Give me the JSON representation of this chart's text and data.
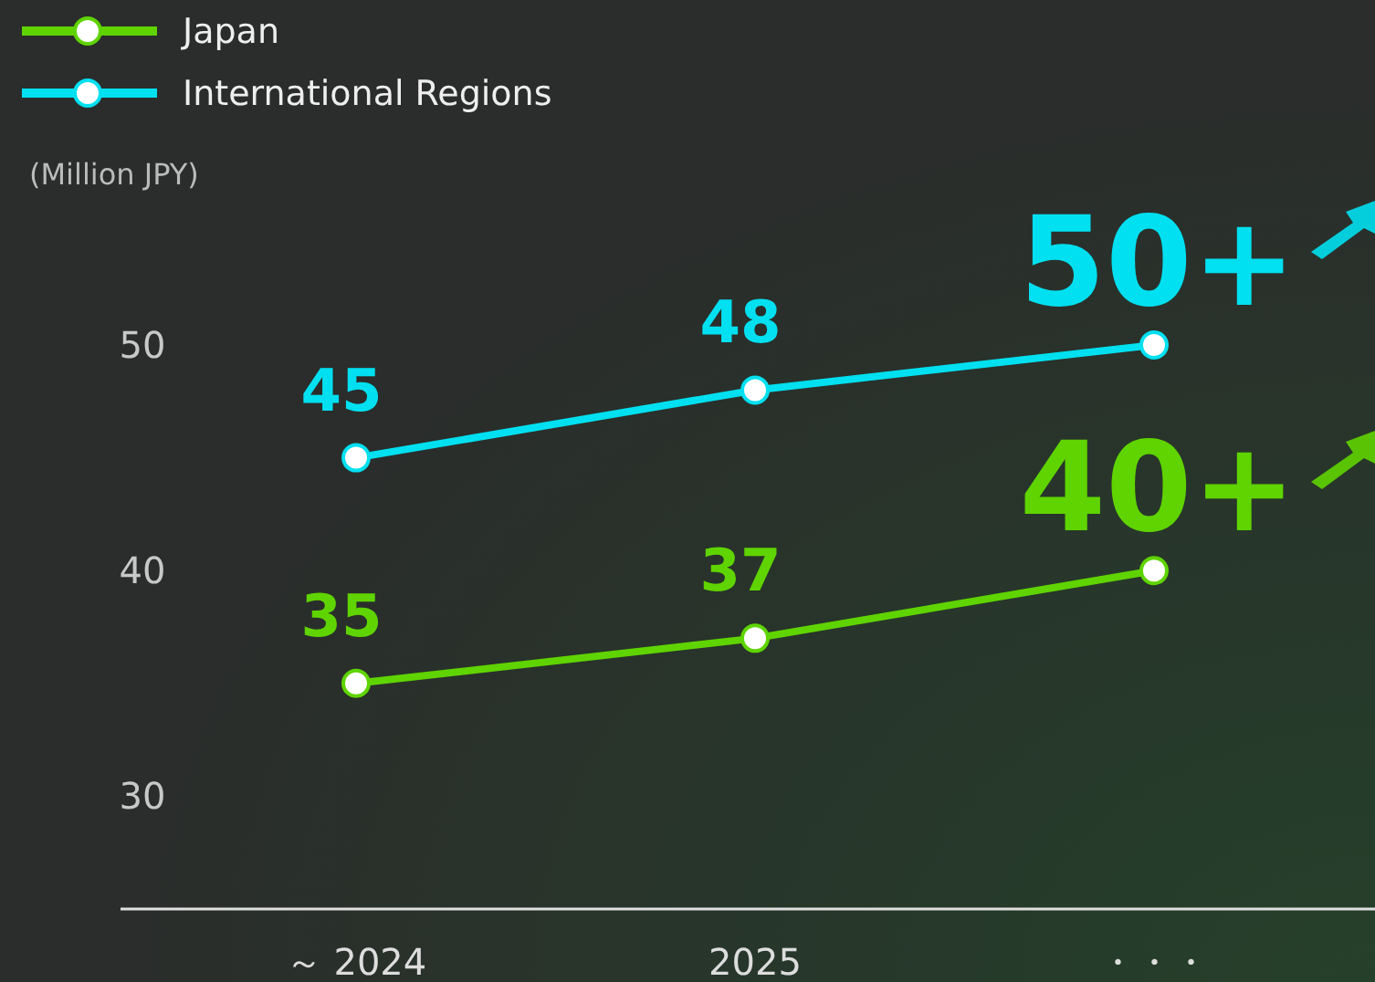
{
  "chart_data": {
    "type": "line",
    "ylabel": "(Million JPY)",
    "categories": [
      "～ 2024",
      "2025",
      "・・・"
    ],
    "series": [
      {
        "name": "Japan",
        "color": "#5fd400",
        "values": [
          35,
          37,
          40
        ],
        "value_labels": [
          "35",
          "37",
          "40+"
        ]
      },
      {
        "name": "International Regions",
        "color": "#00e0f0",
        "values": [
          45,
          48,
          50
        ],
        "value_labels": [
          "45",
          "48",
          "50+"
        ]
      }
    ],
    "ylim": [
      25,
      50
    ],
    "yticks": [
      30,
      40,
      50
    ],
    "grid": false,
    "legend": "top left",
    "marker": "circle",
    "line_style": "solid"
  }
}
